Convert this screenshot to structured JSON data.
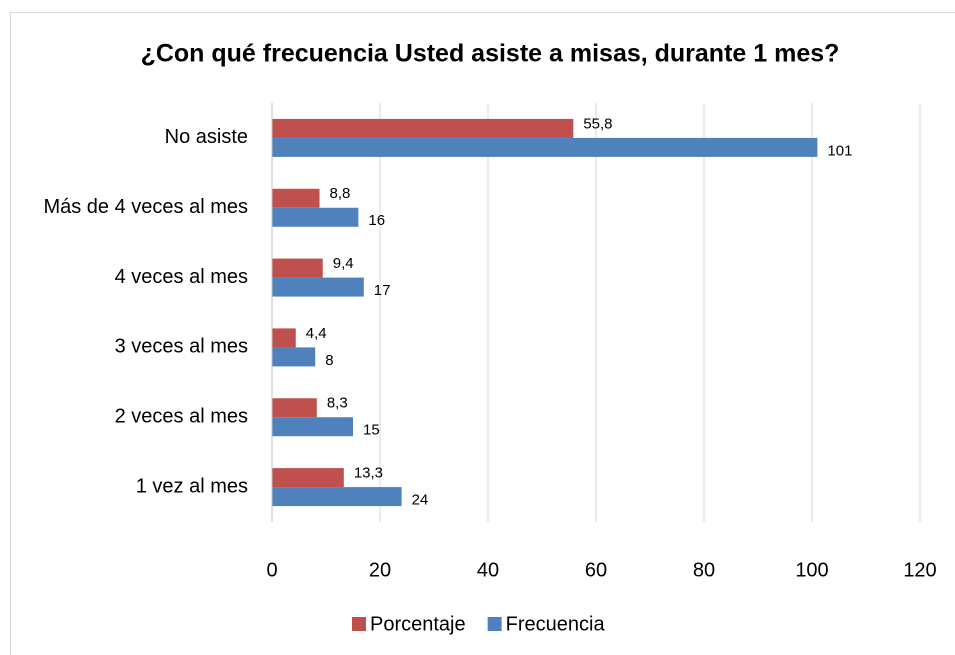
{
  "chart_data": {
    "type": "bar",
    "orientation": "horizontal",
    "title": "¿Con qué frecuencia Usted asiste a misas, durante 1 mes?",
    "categories": [
      "No asiste",
      "Más de 4 veces al mes",
      "4 veces al mes",
      "3 veces al mes",
      "2 veces al mes",
      "1 vez al mes"
    ],
    "series": [
      {
        "name": "Porcentaje",
        "color": "#c0504d",
        "values": [
          55.8,
          8.8,
          9.4,
          4.4,
          8.3,
          13.3
        ],
        "value_labels": [
          "55,8",
          "8,8",
          "9,4",
          "4,4",
          "8,3",
          "13,3"
        ]
      },
      {
        "name": "Frecuencia",
        "color": "#4f81bd",
        "values": [
          101,
          16,
          17,
          8,
          15,
          24
        ]
      }
    ],
    "xlim": [
      0,
      120
    ],
    "xticks": [
      0,
      20,
      40,
      60,
      80,
      100,
      120
    ],
    "grid": true,
    "legend": "bottom"
  }
}
